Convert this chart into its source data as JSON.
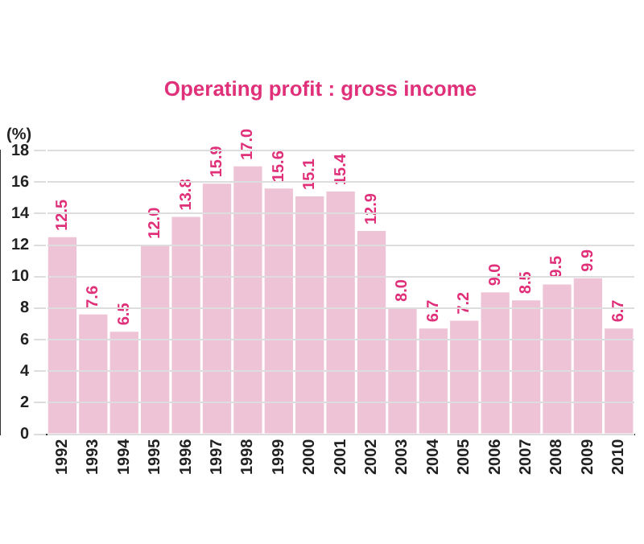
{
  "chart_data": {
    "type": "bar",
    "title": "Operating profit : gross income",
    "ylabel": "(%)",
    "categories": [
      "1992",
      "1993",
      "1994",
      "1995",
      "1996",
      "1997",
      "1998",
      "1999",
      "2000",
      "2001",
      "2002",
      "2003",
      "2004",
      "2005",
      "2006",
      "2007",
      "2008",
      "2009",
      "2010"
    ],
    "values": [
      12.5,
      7.6,
      6.5,
      12.0,
      13.8,
      15.9,
      17.0,
      15.6,
      15.1,
      15.4,
      12.9,
      8.0,
      6.7,
      7.2,
      9.0,
      8.5,
      9.5,
      9.9,
      6.7
    ],
    "value_labels": [
      "12.5",
      "7.6",
      "6.5",
      "12.0",
      "13.8",
      "15.9",
      "17.0",
      "15.6",
      "15.1",
      "15.4",
      "12.9",
      "8.0",
      "6.7",
      "7.2",
      "9.0",
      "8.5",
      "9.5",
      "9.9",
      "6.7"
    ],
    "color": "#efc3d6",
    "ylim": [
      0,
      18
    ],
    "yticks": [
      0,
      2,
      4,
      6,
      8,
      10,
      12,
      14,
      16,
      18
    ],
    "grid": "y",
    "legend": false
  }
}
